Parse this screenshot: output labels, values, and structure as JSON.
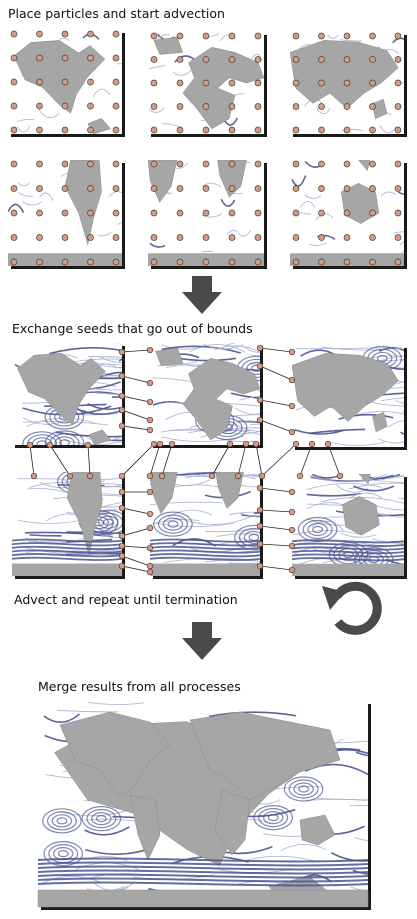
{
  "steps": {
    "step1": "Place particles and start advection",
    "step2": "Exchange seeds that go out of bounds",
    "step3": "Advect and repeat until termination",
    "step4": "Merge results from all processes"
  },
  "icons": {
    "down_arrow": "down-arrow-icon",
    "loop": "loop-arrow-icon"
  },
  "colors": {
    "land": "#a6a6a6",
    "flow": "#4a5590",
    "flow_light": "#aab0d2",
    "seed": "#d39a86",
    "arrow": "#4a4a4a"
  }
}
